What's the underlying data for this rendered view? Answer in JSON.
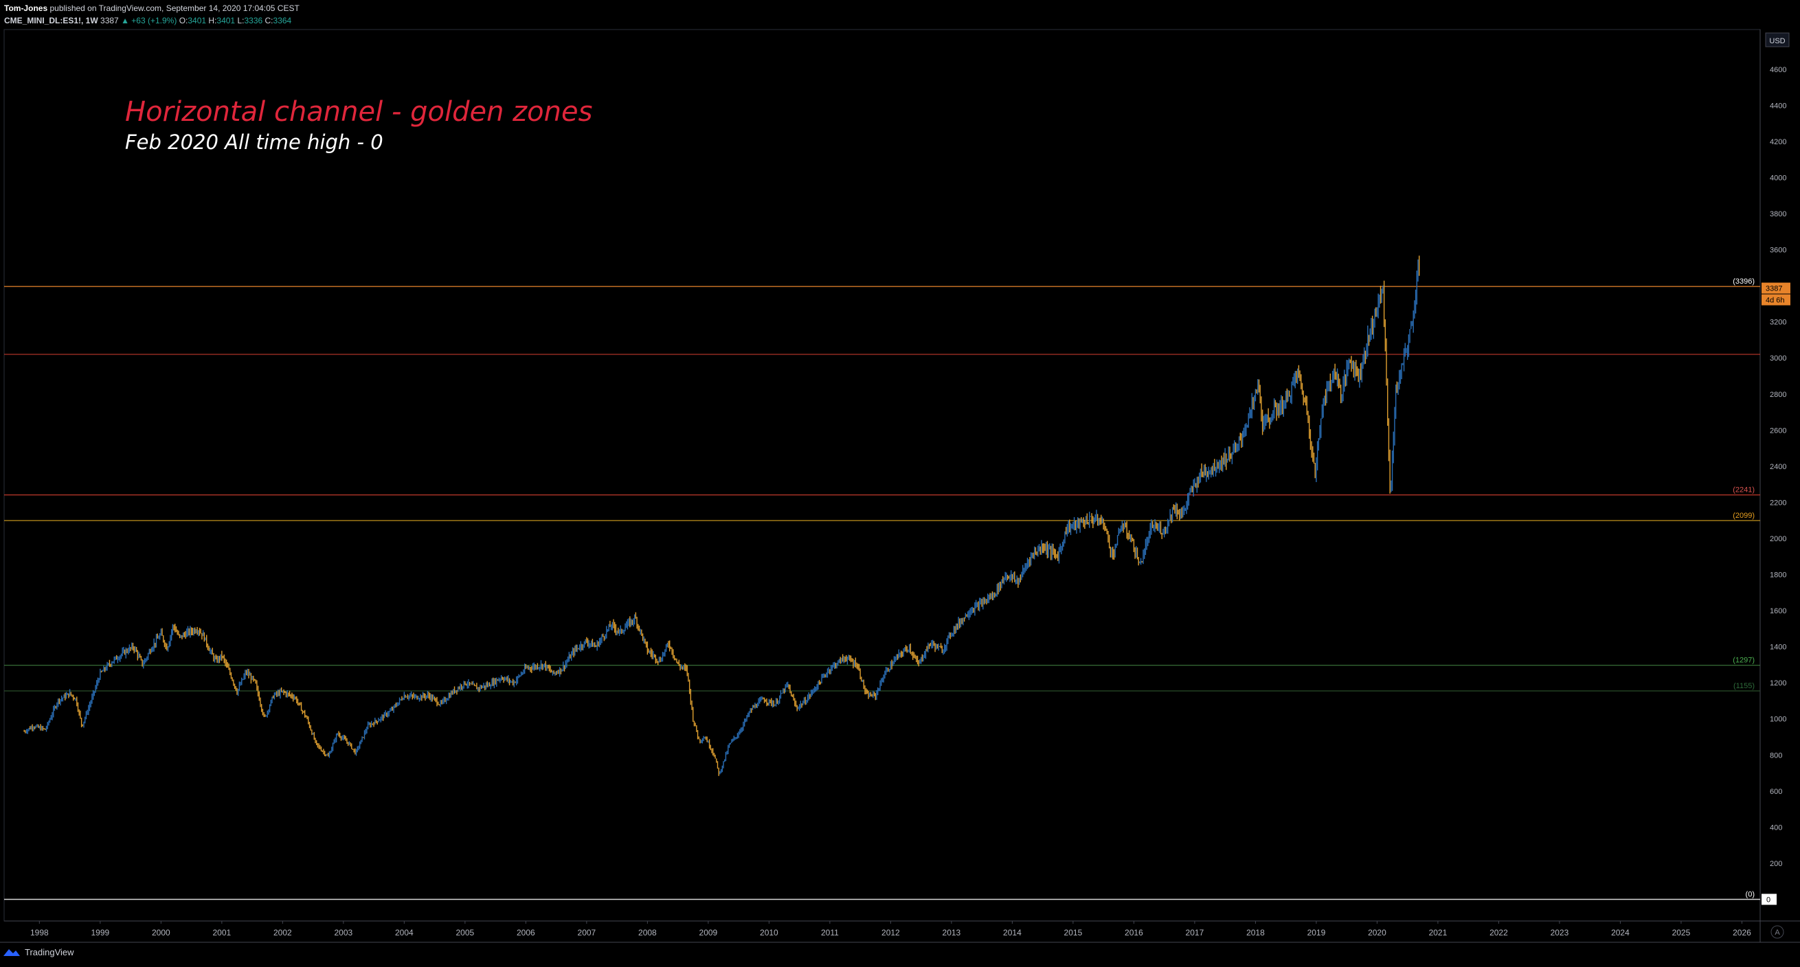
{
  "header": {
    "author": "Tom-Jones",
    "published_text": "published on TradingView.com, September 14, 2020 17:04:05 CEST",
    "symbol": "CME_MINI_DL:ES1!, 1W",
    "last": "3387",
    "change": "▲ +63 (+1.9%)",
    "ohlc": {
      "o_label": "O:",
      "o": "3401",
      "h_label": "H:",
      "h": "3401",
      "l_label": "L:",
      "l": "3336",
      "c_label": "C:",
      "c": "3364"
    }
  },
  "annotations": {
    "title": "Horizontal channel - golden zones",
    "subtitle": "Feb 2020 All time high - 0"
  },
  "footer": {
    "brand": "TradingView"
  },
  "colors": {
    "bull": "#2a6fb8",
    "bear": "#e0a030",
    "bg": "#000000",
    "axis_text": "#b2b5be"
  },
  "chart_data": {
    "type": "candlestick",
    "currency": "USD",
    "interval": "1W",
    "ylim": [
      -120,
      4820
    ],
    "y_ticks": [
      200,
      400,
      600,
      800,
      1000,
      1200,
      1400,
      1600,
      1800,
      2000,
      2200,
      2400,
      2600,
      2800,
      3000,
      3200,
      3400,
      3600,
      3800,
      4000,
      4200,
      4400,
      4600
    ],
    "x_ticks": [
      "1998",
      "1999",
      "2000",
      "2001",
      "2002",
      "2003",
      "2004",
      "2005",
      "2006",
      "2007",
      "2008",
      "2009",
      "2010",
      "2011",
      "2012",
      "2013",
      "2014",
      "2015",
      "2016",
      "2017",
      "2018",
      "2019",
      "2020",
      "2021",
      "2022",
      "2023",
      "2024",
      "2025",
      "2026"
    ],
    "xlim": [
      1997.42,
      2026.3
    ],
    "last_price": {
      "value": 3387,
      "label": "3387",
      "countdown": "4d 6h"
    },
    "zero_label": "0",
    "hlines": [
      {
        "value": 3396,
        "label": "(3396)",
        "color": "#e8842a",
        "label_color": "#ffffff"
      },
      {
        "value": 3020,
        "label": "",
        "color": "#c0392b",
        "label_color": "#c0392b"
      },
      {
        "value": 2241,
        "label": "(2241)",
        "color": "#c0392b",
        "label_color": "#d9534f"
      },
      {
        "value": 2099,
        "label": "(2099)",
        "color": "#d4a020",
        "label_color": "#e8a020"
      },
      {
        "value": 1297,
        "label": "(1297)",
        "color": "#3d7a3d",
        "label_color": "#4caf50"
      },
      {
        "value": 1155,
        "label": "(1155)",
        "color": "#2a4d2a",
        "label_color": "#2e6b3a"
      },
      {
        "value": 0,
        "label": "(0)",
        "color": "#d8d8d8",
        "label_color": "#ffffff"
      }
    ],
    "price_path": [
      [
        1997.75,
        930
      ],
      [
        1997.9,
        960
      ],
      [
        1998.1,
        940
      ],
      [
        1998.3,
        1100
      ],
      [
        1998.5,
        1140
      ],
      [
        1998.6,
        1110
      ],
      [
        1998.7,
        960
      ],
      [
        1998.85,
        1100
      ],
      [
        1999.0,
        1250
      ],
      [
        1999.2,
        1320
      ],
      [
        1999.4,
        1370
      ],
      [
        1999.55,
        1400
      ],
      [
        1999.7,
        1300
      ],
      [
        1999.85,
        1400
      ],
      [
        2000.0,
        1470
      ],
      [
        2000.1,
        1390
      ],
      [
        2000.2,
        1520
      ],
      [
        2000.3,
        1450
      ],
      [
        2000.45,
        1480
      ],
      [
        2000.6,
        1500
      ],
      [
        2000.7,
        1460
      ],
      [
        2000.8,
        1380
      ],
      [
        2000.9,
        1320
      ],
      [
        2001.0,
        1350
      ],
      [
        2001.15,
        1240
      ],
      [
        2001.25,
        1150
      ],
      [
        2001.4,
        1260
      ],
      [
        2001.55,
        1200
      ],
      [
        2001.7,
        1000
      ],
      [
        2001.85,
        1130
      ],
      [
        2002.0,
        1150
      ],
      [
        2002.2,
        1120
      ],
      [
        2002.4,
        1000
      ],
      [
        2002.55,
        860
      ],
      [
        2002.75,
        790
      ],
      [
        2002.9,
        920
      ],
      [
        2003.1,
        860
      ],
      [
        2003.2,
        810
      ],
      [
        2003.4,
        960
      ],
      [
        2003.6,
        1000
      ],
      [
        2003.8,
        1050
      ],
      [
        2004.0,
        1130
      ],
      [
        2004.2,
        1120
      ],
      [
        2004.4,
        1130
      ],
      [
        2004.6,
        1080
      ],
      [
        2004.8,
        1150
      ],
      [
        2005.0,
        1200
      ],
      [
        2005.2,
        1170
      ],
      [
        2005.4,
        1190
      ],
      [
        2005.6,
        1230
      ],
      [
        2005.8,
        1200
      ],
      [
        2006.0,
        1280
      ],
      [
        2006.3,
        1300
      ],
      [
        2006.45,
        1250
      ],
      [
        2006.6,
        1280
      ],
      [
        2006.8,
        1380
      ],
      [
        2007.0,
        1430
      ],
      [
        2007.15,
        1400
      ],
      [
        2007.4,
        1520
      ],
      [
        2007.55,
        1480
      ],
      [
        2007.7,
        1530
      ],
      [
        2007.8,
        1560
      ],
      [
        2007.9,
        1470
      ],
      [
        2008.0,
        1380
      ],
      [
        2008.2,
        1320
      ],
      [
        2008.35,
        1420
      ],
      [
        2008.5,
        1300
      ],
      [
        2008.65,
        1270
      ],
      [
        2008.75,
        1000
      ],
      [
        2008.85,
        880
      ],
      [
        2008.95,
        900
      ],
      [
        2009.1,
        800
      ],
      [
        2009.18,
        690
      ],
      [
        2009.35,
        860
      ],
      [
        2009.5,
        920
      ],
      [
        2009.7,
        1050
      ],
      [
        2009.9,
        1110
      ],
      [
        2010.1,
        1080
      ],
      [
        2010.3,
        1190
      ],
      [
        2010.45,
        1060
      ],
      [
        2010.6,
        1100
      ],
      [
        2010.8,
        1190
      ],
      [
        2011.0,
        1280
      ],
      [
        2011.25,
        1340
      ],
      [
        2011.45,
        1300
      ],
      [
        2011.6,
        1130
      ],
      [
        2011.75,
        1130
      ],
      [
        2011.9,
        1250
      ],
      [
        2012.1,
        1340
      ],
      [
        2012.3,
        1400
      ],
      [
        2012.45,
        1300
      ],
      [
        2012.65,
        1420
      ],
      [
        2012.85,
        1380
      ],
      [
        2013.0,
        1480
      ],
      [
        2013.3,
        1600
      ],
      [
        2013.5,
        1640
      ],
      [
        2013.7,
        1690
      ],
      [
        2013.9,
        1800
      ],
      [
        2014.1,
        1760
      ],
      [
        2014.3,
        1900
      ],
      [
        2014.5,
        1960
      ],
      [
        2014.75,
        1900
      ],
      [
        2014.9,
        2060
      ],
      [
        2015.1,
        2080
      ],
      [
        2015.3,
        2110
      ],
      [
        2015.5,
        2090
      ],
      [
        2015.65,
        1900
      ],
      [
        2015.8,
        2080
      ],
      [
        2015.95,
        2000
      ],
      [
        2016.1,
        1850
      ],
      [
        2016.3,
        2070
      ],
      [
        2016.5,
        2040
      ],
      [
        2016.65,
        2170
      ],
      [
        2016.8,
        2130
      ],
      [
        2016.9,
        2230
      ],
      [
        2017.1,
        2360
      ],
      [
        2017.3,
        2390
      ],
      [
        2017.5,
        2440
      ],
      [
        2017.7,
        2500
      ],
      [
        2017.9,
        2680
      ],
      [
        2018.05,
        2860
      ],
      [
        2018.12,
        2620
      ],
      [
        2018.3,
        2700
      ],
      [
        2018.5,
        2760
      ],
      [
        2018.7,
        2920
      ],
      [
        2018.85,
        2700
      ],
      [
        2018.98,
        2350
      ],
      [
        2019.1,
        2750
      ],
      [
        2019.3,
        2930
      ],
      [
        2019.42,
        2800
      ],
      [
        2019.55,
        3000
      ],
      [
        2019.7,
        2900
      ],
      [
        2019.85,
        3100
      ],
      [
        2019.97,
        3250
      ],
      [
        2020.1,
        3380
      ],
      [
        2020.15,
        2900
      ],
      [
        2020.22,
        2200
      ],
      [
        2020.3,
        2800
      ],
      [
        2020.45,
        3000
      ],
      [
        2020.55,
        3150
      ],
      [
        2020.62,
        3300
      ],
      [
        2020.68,
        3580
      ],
      [
        2020.71,
        3360
      ]
    ]
  }
}
